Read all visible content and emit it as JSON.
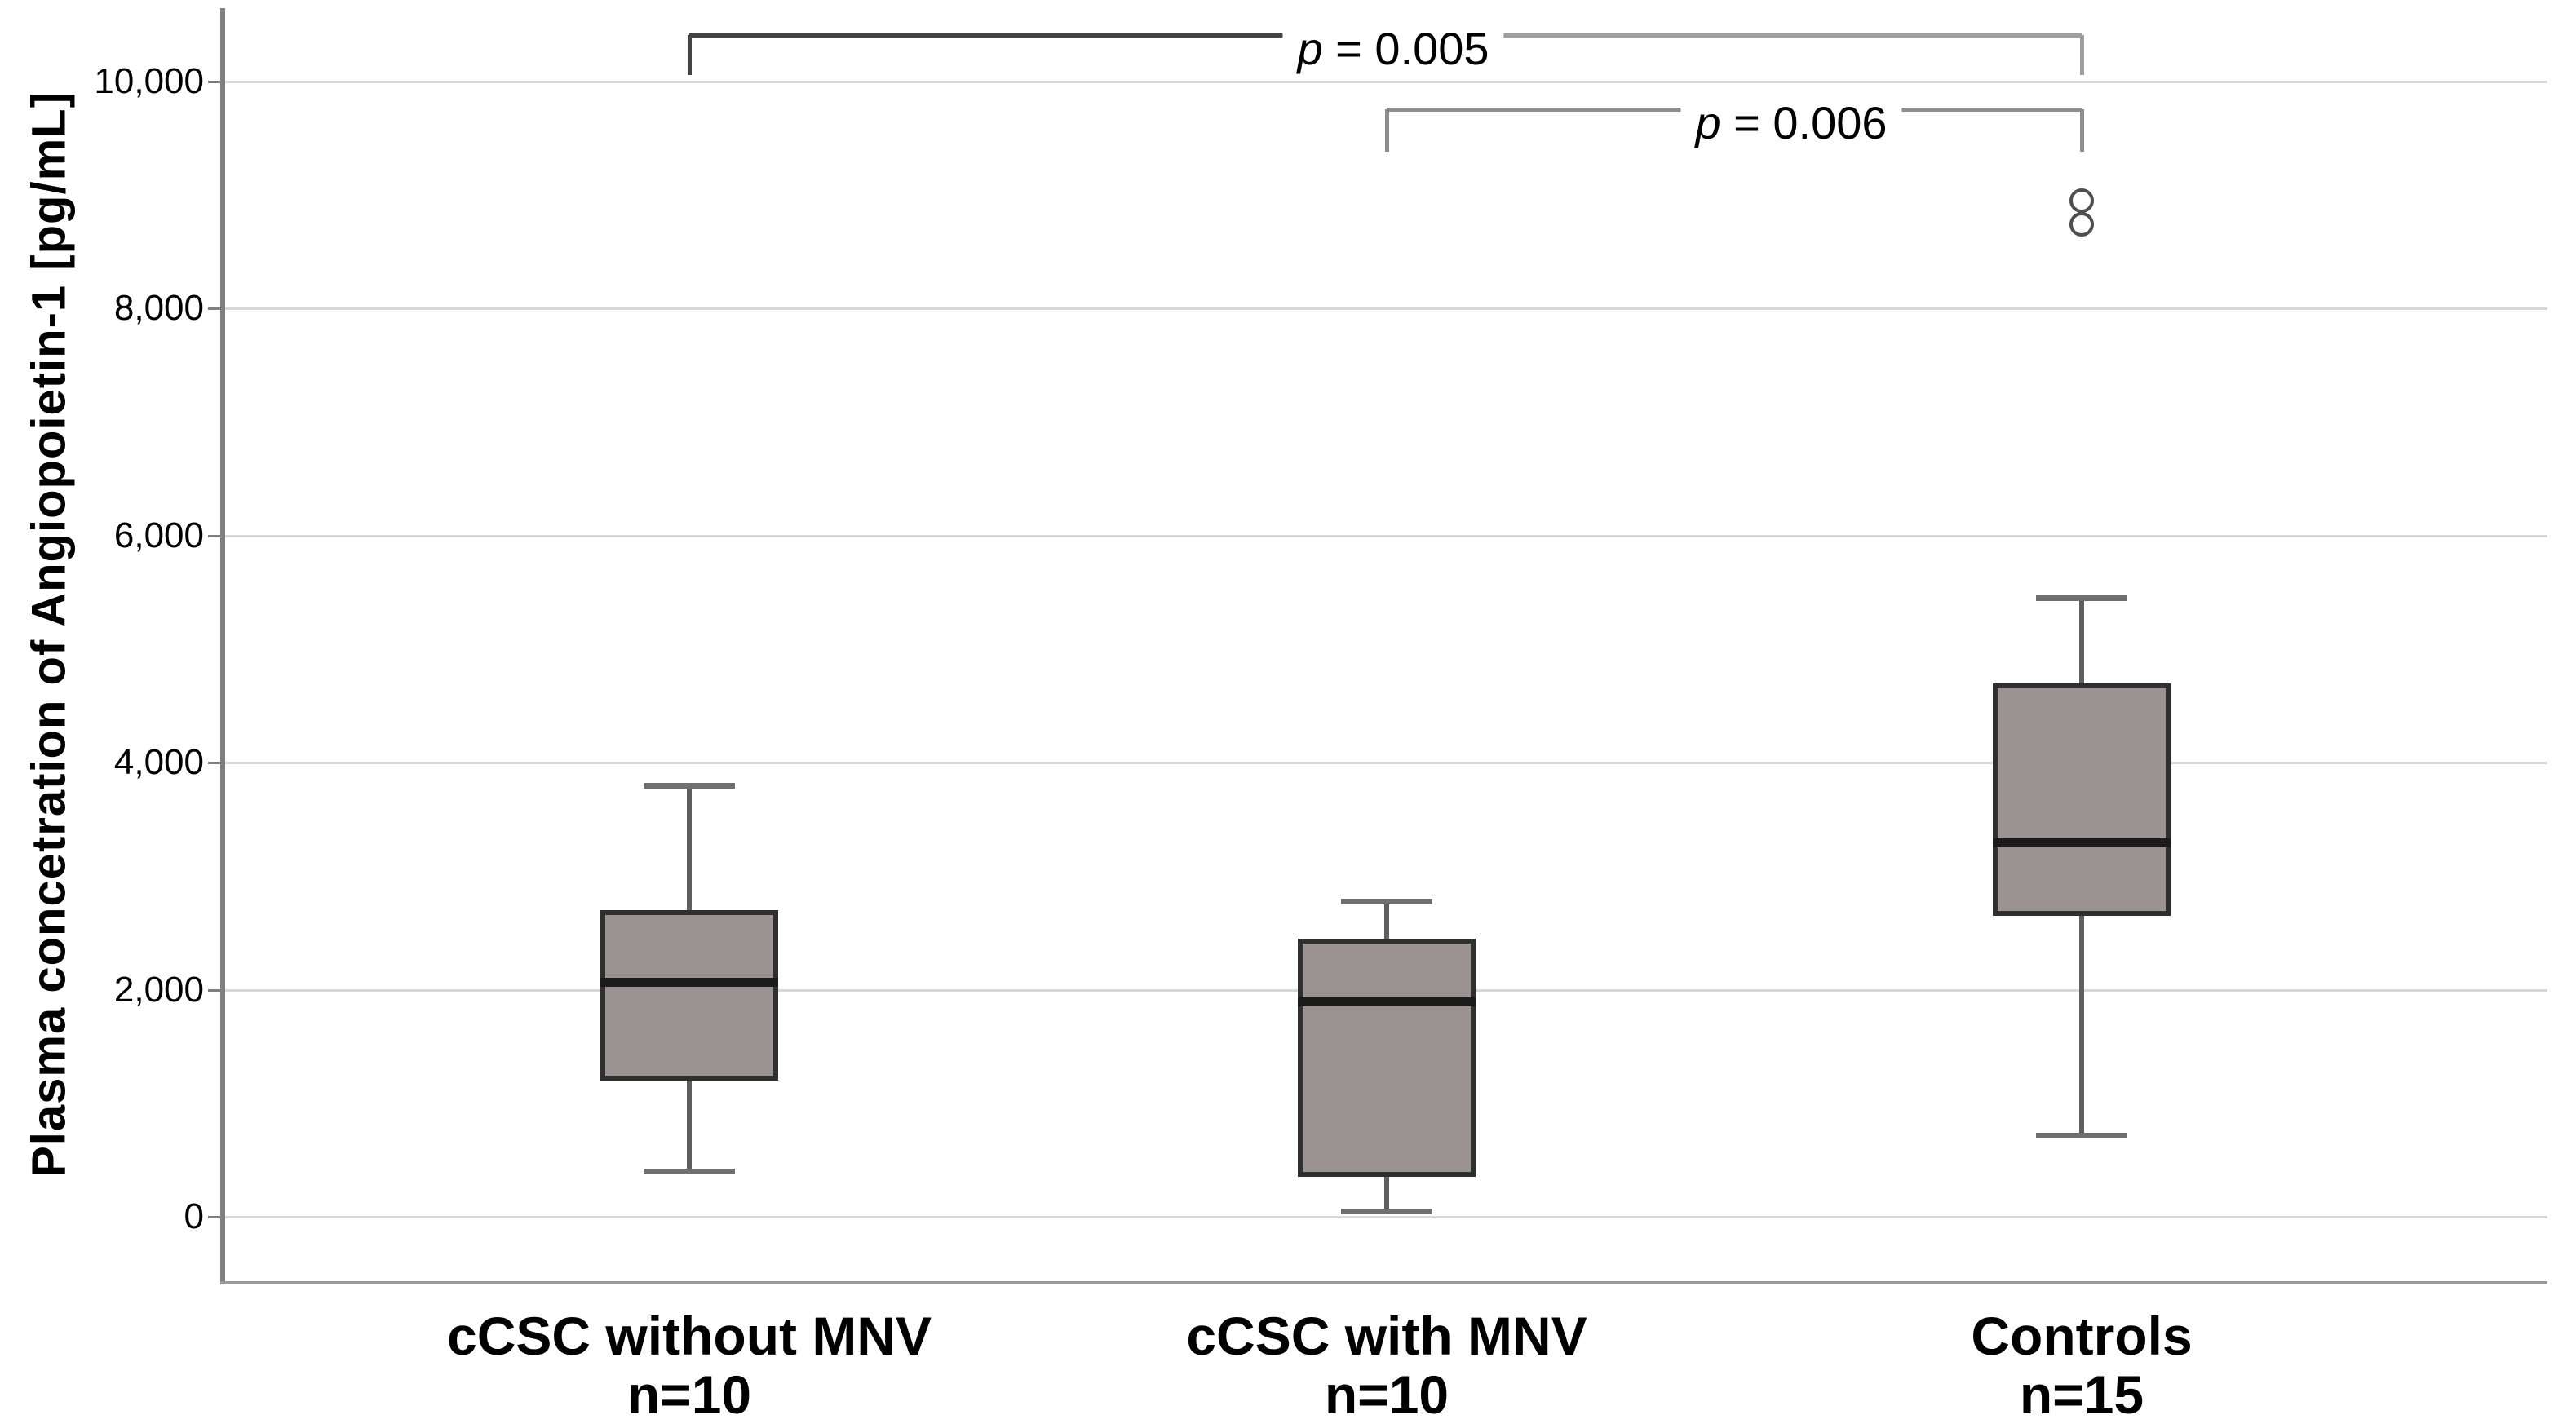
{
  "chart_data": {
    "type": "boxplot",
    "title": "",
    "xlabel": "",
    "ylabel": "Plasma concetration of Angiopoietin-1 [pg/mL]",
    "ylim": [
      0,
      10000
    ],
    "yticks": [
      10000,
      8000,
      6000,
      4000,
      2000,
      0
    ],
    "ytick_labels": [
      "10,000",
      "8,000",
      "6,000",
      "4,000",
      "2,000",
      "0"
    ],
    "grid": "horizontal-light-gray",
    "legend": "none",
    "groups": [
      {
        "label": "cCSC without MNV",
        "n_label": "n=10",
        "n": 10,
        "whisker_low": 400,
        "q1": 1200,
        "median": 2070,
        "q3": 2700,
        "whisker_high": 3800,
        "outliers": []
      },
      {
        "label": "cCSC with MNV",
        "n_label": "n=10",
        "n": 10,
        "whisker_low": 50,
        "q1": 350,
        "median": 1900,
        "q3": 2450,
        "whisker_high": 2780,
        "outliers": []
      },
      {
        "label": "Controls",
        "n_label": "n=15",
        "n": 15,
        "whisker_low": 720,
        "q1": 2650,
        "median": 3300,
        "q3": 4700,
        "whisker_high": 5450,
        "outliers": [
          8950,
          8740
        ]
      }
    ],
    "significance_brackets": [
      {
        "between_groups": [
          0,
          2
        ],
        "p_italic": "p",
        "p_text": " = 0.005"
      },
      {
        "between_groups": [
          1,
          2
        ],
        "p_italic": "p",
        "p_text": " = 0.006"
      }
    ],
    "colors": {
      "box_fill": "#9b9391",
      "box_border": "#2f2f2f",
      "median": "#1b1b1b",
      "whisker": "#5f5f5f",
      "whisker_cap": "#6f6f6f",
      "gridline": "#d8d8d8",
      "axis": "#7f7f7f",
      "frame": "#9a9a9a",
      "outlier_stroke": "#4f4f4f",
      "bracket_dark": "#434343",
      "bracket_light": "#9f9f9f",
      "bracket_mid": "#8d8d8d",
      "text": "#000000"
    }
  }
}
